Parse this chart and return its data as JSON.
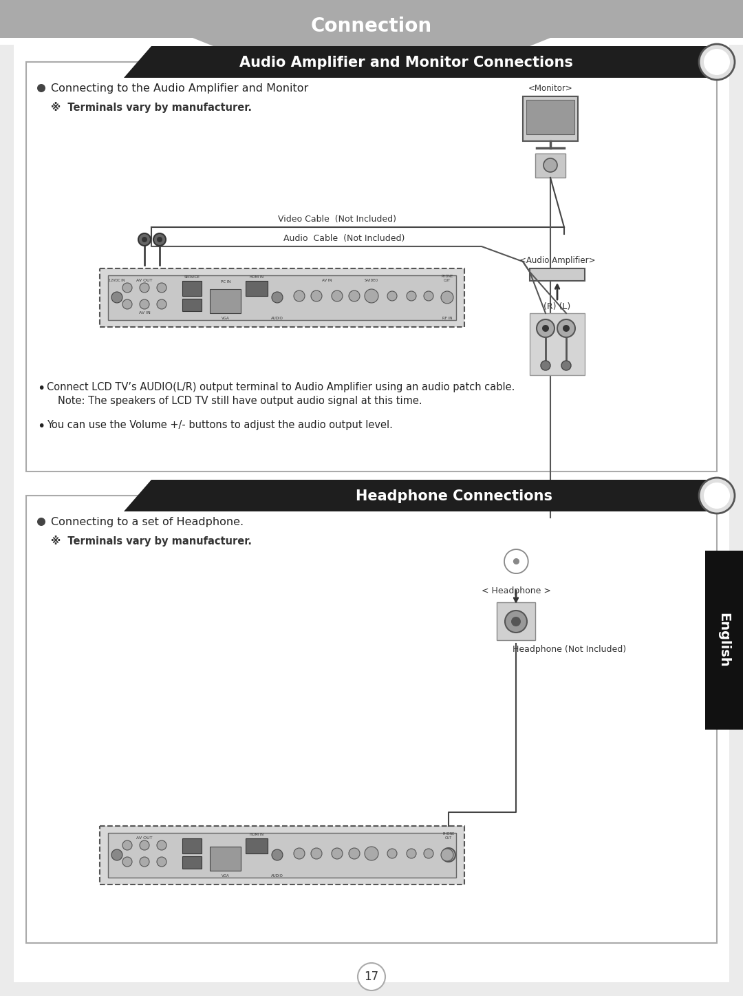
{
  "page_bg": "#ebebeb",
  "white_bg": "#ffffff",
  "header_bg": "#aaaaaa",
  "header_text": "Connection",
  "header_text_color": "#ffffff",
  "section1_title": "Audio Amplifier and Monitor Connections",
  "section1_title_bg": "#1e1e1e",
  "section1_title_color": "#ffffff",
  "section1_bullet1": "Connecting to the Audio Amplifier and Monitor",
  "section1_note": "※  Terminals vary by manufacturer.",
  "section1_cable1": "Video Cable  (Not Included)",
  "section1_cable2": "Audio  Cable  (Not Included)",
  "section1_monitor_label": "<Monitor>",
  "section1_amp_label": "<Audio Amplifier>",
  "section1_rl_label": "(R) (L)",
  "section1_bullet2a": "Connect LCD TV’s AUDIO(L/R) output terminal to Audio Amplifier using an audio patch cable.",
  "section1_bullet2b": "Note: The speakers of LCD TV still have output audio signal at this time.",
  "section1_bullet3": "You can use the Volume +/- buttons to adjust the audio output level.",
  "section2_title": "Headphone Connections",
  "section2_title_bg": "#1e1e1e",
  "section2_title_color": "#ffffff",
  "section2_bullet1": "Connecting to a set of Headphone.",
  "section2_note": "※  Terminals vary by manufacturer.",
  "section2_hp_label": "< Headphone >",
  "section2_hp_cable": "Headphone (Not Included)",
  "english_label": "English",
  "english_bg": "#111111",
  "english_color": "#ffffff",
  "page_number": "17",
  "dark_border": "#333333",
  "light_gray": "#cccccc",
  "mid_gray": "#888888",
  "panel_bg": "#d8d8d8"
}
